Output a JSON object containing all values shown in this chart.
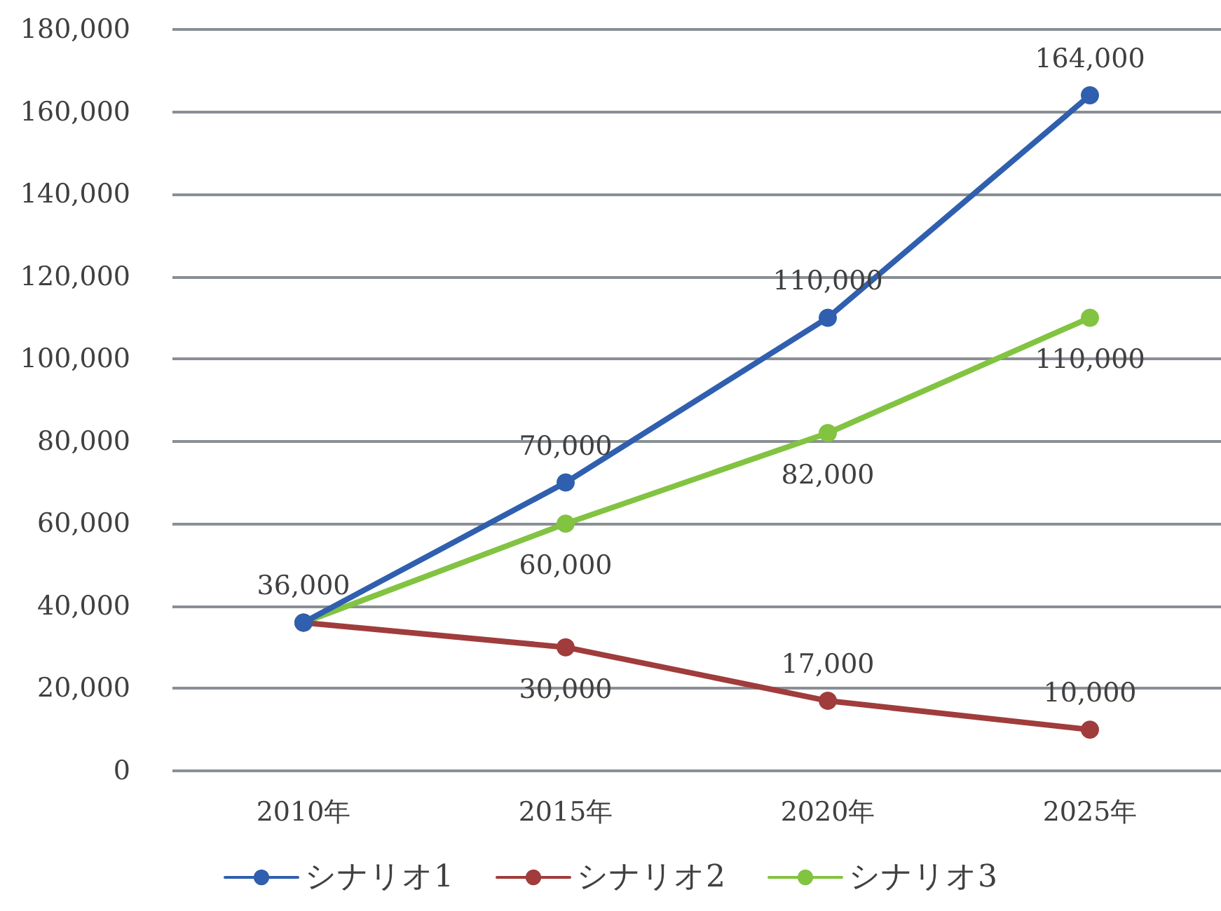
{
  "chart_data": {
    "type": "line",
    "categories": [
      "2010年",
      "2015年",
      "2020年",
      "2025年"
    ],
    "series": [
      {
        "name": "シナリオ1",
        "color": "#2f5fae",
        "values": [
          36000,
          70000,
          110000,
          164000
        ],
        "value_labels": [
          "36,000",
          "70,000",
          "110,000",
          "164,000"
        ]
      },
      {
        "name": "シナリオ2",
        "color": "#a03c3c",
        "values": [
          36000,
          30000,
          17000,
          10000
        ],
        "value_labels": [
          null,
          "30,000",
          "17,000",
          "10,000"
        ]
      },
      {
        "name": "シナリオ3",
        "color": "#82c341",
        "values": [
          36000,
          60000,
          82000,
          110000
        ],
        "value_labels": [
          null,
          "60,000",
          "82,000",
          "110,000"
        ]
      }
    ],
    "ylim": [
      0,
      180000
    ],
    "yticks": [
      0,
      {
        "value": 20000,
        "label": "20,000"
      },
      {
        "value": 40000,
        "label": "40,000"
      },
      {
        "value": 60000,
        "label": "60,000"
      },
      {
        "value": 80000,
        "label": "80,000"
      },
      {
        "value": 100000,
        "label": "100,000"
      },
      {
        "value": 120000,
        "label": "120,000"
      },
      {
        "value": 140000,
        "label": "140,000"
      },
      {
        "value": 160000,
        "label": "160,000"
      },
      {
        "value": 180000,
        "label": "180,000"
      }
    ],
    "grid": "y",
    "legend": "bottom",
    "marker": "circle",
    "line_style": "solid"
  }
}
